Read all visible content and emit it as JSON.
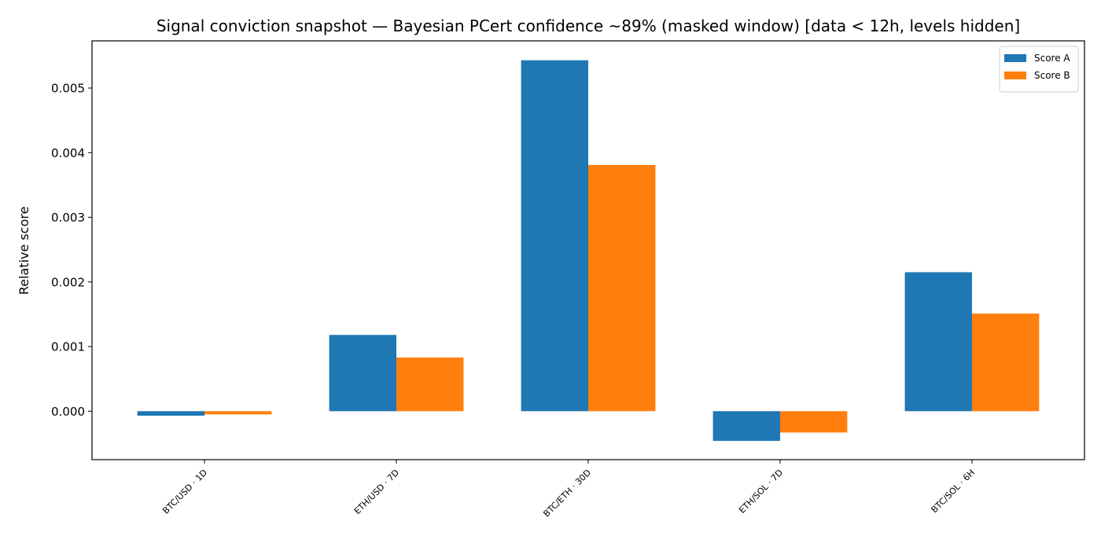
{
  "chart_data": {
    "type": "bar",
    "title": "Signal conviction snapshot — Bayesian PCert confidence ~89% (masked window) [data < 12h, levels hidden]",
    "y_label": "Relative score",
    "categories": [
      "BTC/USD · 1D",
      "ETH/USD · 7D",
      "BTC/ETH · 30D",
      "ETH/SOL · 7D",
      "BTC/SOL · 6H"
    ],
    "series": [
      {
        "name": "Score A",
        "color": "#1f77b4",
        "values": [
          -7e-05,
          0.00118,
          0.00543,
          -0.00046,
          0.00215
        ]
      },
      {
        "name": "Score B",
        "color": "#ff7f0e",
        "values": [
          -5e-05,
          0.00083,
          0.00381,
          -0.00033,
          0.00151
        ]
      }
    ],
    "ylim": [
      -0.00075,
      0.00573
    ],
    "yticks": [
      {
        "value": 0,
        "label": "0.000"
      },
      0.001,
      0.002,
      0.003,
      0.004,
      0.005
    ],
    "legend": "upper right",
    "grid": false
  }
}
